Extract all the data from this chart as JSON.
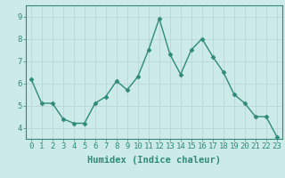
{
  "x": [
    0,
    1,
    2,
    3,
    4,
    5,
    6,
    7,
    8,
    9,
    10,
    11,
    12,
    13,
    14,
    15,
    16,
    17,
    18,
    19,
    20,
    21,
    22,
    23
  ],
  "y": [
    6.2,
    5.1,
    5.1,
    4.4,
    4.2,
    4.2,
    5.1,
    5.4,
    6.1,
    5.7,
    6.3,
    7.5,
    8.9,
    7.3,
    6.4,
    7.5,
    8.0,
    7.2,
    6.5,
    5.5,
    5.1,
    4.5,
    4.5,
    3.6
  ],
  "xlabel": "Humidex (Indice chaleur)",
  "ylim": [
    3.5,
    9.5
  ],
  "xlim": [
    -0.5,
    23.5
  ],
  "yticks": [
    4,
    5,
    6,
    7,
    8,
    9
  ],
  "xticks": [
    0,
    1,
    2,
    3,
    4,
    5,
    6,
    7,
    8,
    9,
    10,
    11,
    12,
    13,
    14,
    15,
    16,
    17,
    18,
    19,
    20,
    21,
    22,
    23
  ],
  "line_color": "#2e8b7a",
  "marker": "D",
  "bg_color": "#cceae7",
  "grid_color": "#b8d8d5",
  "tick_label_fontsize": 6.5,
  "xlabel_fontsize": 7.5
}
